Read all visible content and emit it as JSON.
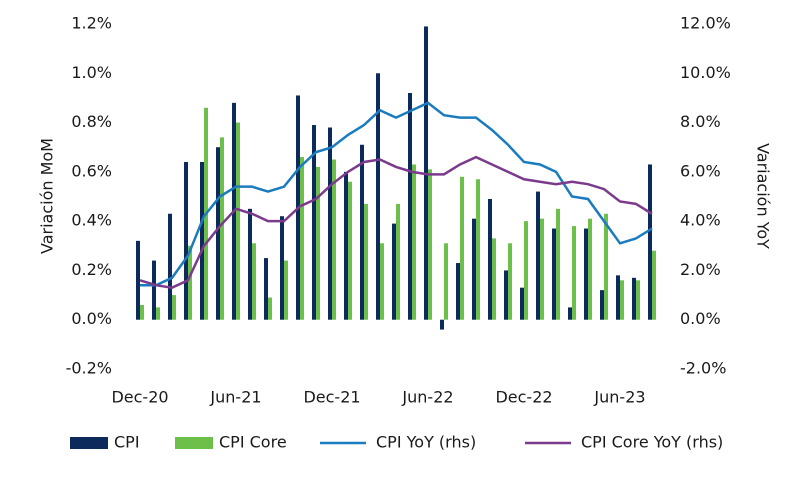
{
  "chart_data": {
    "type": "bar-line",
    "categories": [
      "Dec-20",
      null,
      null,
      null,
      null,
      null,
      "Jun-21",
      null,
      null,
      null,
      null,
      null,
      "Dec-21",
      null,
      null,
      null,
      null,
      null,
      "Jun-22",
      null,
      null,
      null,
      null,
      null,
      "Dec-22",
      null,
      null,
      null,
      null,
      null,
      "Jun-23",
      null,
      null
    ],
    "ylabel": "Variación MoM",
    "y2label": "Variación YoY",
    "ylim": [
      -0.2,
      1.2
    ],
    "yticks": [
      {
        "value": -0.2,
        "label": "-0.2%"
      },
      {
        "value": 0,
        "label": "0.0%"
      },
      {
        "value": 0.2,
        "label": "0.2%"
      },
      {
        "value": 0.4,
        "label": "0.4%"
      },
      {
        "value": 0.6,
        "label": "0.6%"
      },
      {
        "value": 0.8,
        "label": "0.8%"
      },
      {
        "value": 1.0,
        "label": "1.0%"
      },
      {
        "value": 1.2,
        "label": "1.2%"
      }
    ],
    "y2lim": [
      -2,
      12
    ],
    "y2ticks": [
      {
        "value": -2,
        "label": "-2.0%"
      },
      {
        "value": 0,
        "label": "0.0%"
      },
      {
        "value": 2,
        "label": "2.0%"
      },
      {
        "value": 4,
        "label": "4.0%"
      },
      {
        "value": 6,
        "label": "6.0%"
      },
      {
        "value": 8,
        "label": "8.0%"
      },
      {
        "value": 10,
        "label": "10.0%"
      },
      {
        "value": 12,
        "label": "12.0%"
      }
    ],
    "grid": false,
    "series": [
      {
        "name": "CPI",
        "type": "bar",
        "color": "#0d2a5c",
        "values": [
          0.32,
          0.24,
          0.43,
          0.64,
          0.64,
          0.7,
          0.88,
          0.45,
          0.25,
          0.42,
          0.91,
          0.79,
          0.78,
          0.6,
          0.71,
          1.0,
          0.39,
          0.92,
          1.19,
          -0.04,
          0.23,
          0.41,
          0.49,
          0.2,
          0.13,
          0.52,
          0.37,
          0.05,
          0.37,
          0.12,
          0.18,
          0.17,
          0.63
        ]
      },
      {
        "name": "CPI Core",
        "type": "bar",
        "color": "#6cc04a",
        "values": [
          0.06,
          0.05,
          0.1,
          0.3,
          0.86,
          0.74,
          0.8,
          0.31,
          0.09,
          0.24,
          0.66,
          0.62,
          0.65,
          0.56,
          0.47,
          0.31,
          0.47,
          0.63,
          0.61,
          0.31,
          0.58,
          0.57,
          0.33,
          0.31,
          0.4,
          0.41,
          0.45,
          0.38,
          0.41,
          0.43,
          0.16,
          0.16,
          0.28
        ]
      },
      {
        "name": "CPI YoY (rhs)",
        "type": "line",
        "axis": "y2",
        "color": "#1a7bbf",
        "values": [
          1.4,
          1.4,
          1.7,
          2.6,
          4.2,
          5.0,
          5.4,
          5.4,
          5.2,
          5.4,
          6.2,
          6.8,
          7.0,
          7.5,
          7.9,
          8.5,
          8.2,
          8.5,
          8.8,
          8.3,
          8.2,
          8.2,
          7.7,
          7.1,
          6.4,
          6.3,
          6.0,
          5.0,
          4.9,
          4.0,
          3.1,
          3.3,
          3.7
        ]
      },
      {
        "name": "CPI Core YoY (rhs)",
        "type": "line",
        "axis": "y2",
        "color": "#7b3a8c",
        "values": [
          1.6,
          1.4,
          1.3,
          1.6,
          3.0,
          3.8,
          4.5,
          4.3,
          4.0,
          4.0,
          4.6,
          4.9,
          5.5,
          6.0,
          6.4,
          6.5,
          6.2,
          6.0,
          5.9,
          5.9,
          6.3,
          6.6,
          6.3,
          6.0,
          5.7,
          5.6,
          5.5,
          5.6,
          5.5,
          5.3,
          4.8,
          4.7,
          4.3
        ]
      }
    ]
  }
}
